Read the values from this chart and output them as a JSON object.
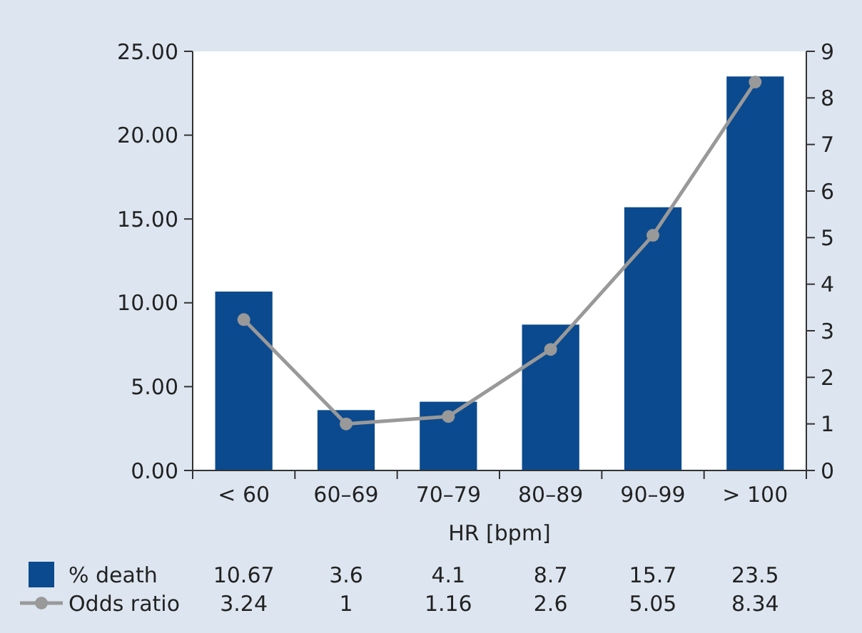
{
  "chart_data": {
    "type": "bar",
    "xlabel": "HR [bpm]",
    "categories": [
      "< 60",
      "60–69",
      "70–79",
      "80–89",
      "90–99",
      "> 100"
    ],
    "series": [
      {
        "name": "% death",
        "color": "#0b4a8e",
        "values": [
          10.67,
          3.6,
          4.1,
          8.7,
          15.7,
          23.5
        ]
      },
      {
        "name": "Odds ratio",
        "type": "line",
        "axis": "y2",
        "color": "#999999",
        "values": [
          3.24,
          1,
          1.16,
          2.6,
          5.05,
          8.34
        ]
      }
    ],
    "ylim": [
      0,
      25
    ],
    "yticks": [
      {
        "value": 0,
        "label": "0.00"
      },
      {
        "value": 5,
        "label": "5.00"
      },
      {
        "value": 10,
        "label": "10.00"
      },
      {
        "value": 15,
        "label": "15.00"
      },
      {
        "value": 20,
        "label": "20.00"
      },
      {
        "value": 25,
        "label": "25.00"
      }
    ],
    "y2lim": [
      0,
      9
    ],
    "y2ticks": [
      0,
      1,
      2,
      3,
      4,
      5,
      6,
      7,
      8,
      9
    ],
    "data_labels": true,
    "legend": "bottom",
    "grid": false,
    "marker": "circle",
    "line_style": "solid"
  }
}
